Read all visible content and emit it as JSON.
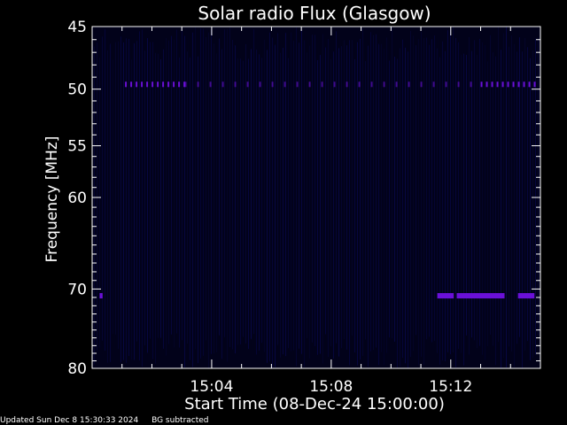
{
  "chart_data": {
    "type": "heatmap",
    "title": "Solar radio Flux (Glasgow)",
    "xlabel": "Start Time (08-Dec-24 15:00:00)",
    "ylabel": "Frequency [MHz]",
    "x_unit": "minutes after 15:00:00",
    "xlim": [
      0,
      15
    ],
    "ylim": [
      45,
      80
    ],
    "y_scale": "log",
    "x_tick_labels": [
      "15:04",
      "15:08",
      "15:12"
    ],
    "x_tick_values": [
      4,
      8,
      12
    ],
    "y_tick_labels": [
      "45",
      "50",
      "55",
      "60",
      "70",
      "80"
    ],
    "y_tick_values": [
      45,
      50,
      55,
      60,
      70,
      80
    ],
    "grid": false,
    "colors": {
      "background": "#000000",
      "axes": "#ffffff",
      "plot_background": "#02021a",
      "band_color": "#6a10d8",
      "stripe_color": "#08084a"
    },
    "bands": [
      {
        "freq": 49.6,
        "x_start": 1.1,
        "x_end": 3.1,
        "style": "dashed"
      },
      {
        "freq": 49.6,
        "x_start": 3.1,
        "x_end": 13.0,
        "style": "sparse"
      },
      {
        "freq": 49.6,
        "x_start": 13.0,
        "x_end": 14.8,
        "style": "dashed"
      },
      {
        "freq": 70.8,
        "x_start": 0.25,
        "x_end": 0.35,
        "style": "solid"
      },
      {
        "freq": 70.8,
        "x_start": 11.55,
        "x_end": 12.1,
        "style": "solid"
      },
      {
        "freq": 70.8,
        "x_start": 12.2,
        "x_end": 13.8,
        "style": "solid"
      },
      {
        "freq": 70.8,
        "x_start": 14.25,
        "x_end": 14.8,
        "style": "solid"
      }
    ]
  },
  "footer": {
    "updated": "Updated Sun Dec  8 15:30:33 2024",
    "note": "BG subtracted"
  }
}
